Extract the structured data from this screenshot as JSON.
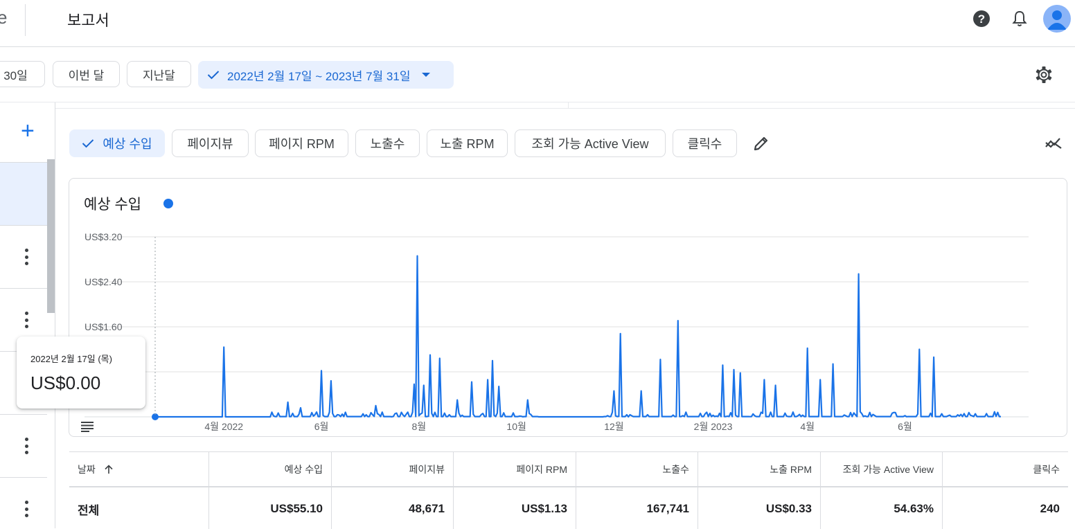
{
  "header": {
    "brand_fragment": "e",
    "title": "보고서",
    "help_icon": "help-circle-icon",
    "notifications_icon": "bell-icon",
    "avatar_icon": "account-avatar-icon"
  },
  "filters": {
    "chips": [
      "30일",
      "이번 달",
      "지난달"
    ],
    "date_range": "2022년 2월 17일 ~ 2023년 7월 31일",
    "settings_icon": "gear-icon"
  },
  "metrics": {
    "chips": [
      {
        "label": "예상 수입",
        "selected": true
      },
      {
        "label": "페이지뷰",
        "selected": false
      },
      {
        "label": "페이지 RPM",
        "selected": false
      },
      {
        "label": "노출수",
        "selected": false
      },
      {
        "label": "노출 RPM",
        "selected": false
      },
      {
        "label": "조회 가능 Active View",
        "selected": false
      },
      {
        "label": "클릭수",
        "selected": false
      }
    ],
    "edit_icon": "pencil-icon",
    "compare_icon": "trend-compare-icon"
  },
  "colors": {
    "accent": "#1a73e8",
    "selected_bg": "#e8f0fe",
    "border": "#dadce0"
  },
  "chart_data": {
    "type": "line",
    "title": "예상 수입",
    "series": [
      {
        "name": "예상 수입",
        "color": "#1a73e8"
      }
    ],
    "y_ticks": [
      "US$3.20",
      "US$2.40",
      "US$1.60"
    ],
    "ylim": [
      0,
      3.2
    ],
    "x_ticks": [
      "4월 2022",
      "6월",
      "8월",
      "10월",
      "12월",
      "2월 2023",
      "4월",
      "6월"
    ],
    "x_range": [
      "2022-02-17",
      "2023-07-31"
    ],
    "grid": true,
    "peaks": [
      {
        "date": "2022-04-01",
        "value": 1.24
      },
      {
        "date": "2022-05-11",
        "value": 0.26
      },
      {
        "date": "2022-05-19",
        "value": 0.16
      },
      {
        "date": "2022-06-01",
        "value": 0.82
      },
      {
        "date": "2022-06-07",
        "value": 0.64
      },
      {
        "date": "2022-07-05",
        "value": 0.2
      },
      {
        "date": "2022-07-29",
        "value": 0.58
      },
      {
        "date": "2022-07-31",
        "value": 2.86
      },
      {
        "date": "2022-08-04",
        "value": 0.56
      },
      {
        "date": "2022-08-08",
        "value": 1.1
      },
      {
        "date": "2022-08-14",
        "value": 1.04
      },
      {
        "date": "2022-08-25",
        "value": 0.3
      },
      {
        "date": "2022-09-03",
        "value": 0.62
      },
      {
        "date": "2022-09-13",
        "value": 0.66
      },
      {
        "date": "2022-09-16",
        "value": 1.0
      },
      {
        "date": "2022-09-20",
        "value": 0.54
      },
      {
        "date": "2022-10-08",
        "value": 0.3
      },
      {
        "date": "2022-12-01",
        "value": 0.46
      },
      {
        "date": "2022-12-05",
        "value": 1.48
      },
      {
        "date": "2022-12-18",
        "value": 0.46
      },
      {
        "date": "2022-12-30",
        "value": 1.02
      },
      {
        "date": "2023-01-10",
        "value": 1.71
      },
      {
        "date": "2023-02-07",
        "value": 0.92
      },
      {
        "date": "2023-02-14",
        "value": 0.84
      },
      {
        "date": "2023-02-18",
        "value": 0.78
      },
      {
        "date": "2023-03-05",
        "value": 0.66
      },
      {
        "date": "2023-03-12",
        "value": 0.56
      },
      {
        "date": "2023-04-01",
        "value": 1.22
      },
      {
        "date": "2023-04-09",
        "value": 0.66
      },
      {
        "date": "2023-04-17",
        "value": 0.94
      },
      {
        "date": "2023-05-03",
        "value": 2.54
      },
      {
        "date": "2023-06-10",
        "value": 1.2
      },
      {
        "date": "2023-06-19",
        "value": 1.06
      }
    ]
  },
  "tooltip": {
    "date": "2022년 2월 17일 (목)",
    "value": "US$0.00"
  },
  "table": {
    "headers": [
      "날짜",
      "예상 수입",
      "페이지뷰",
      "페이지 RPM",
      "노출수",
      "노출 RPM",
      "조회 가능 Active View",
      "클릭수"
    ],
    "sort_icon": "arrow-up-icon",
    "total_row": [
      "전체",
      "US$55.10",
      "48,671",
      "US$1.13",
      "167,741",
      "US$0.33",
      "54.63%",
      "240"
    ]
  }
}
